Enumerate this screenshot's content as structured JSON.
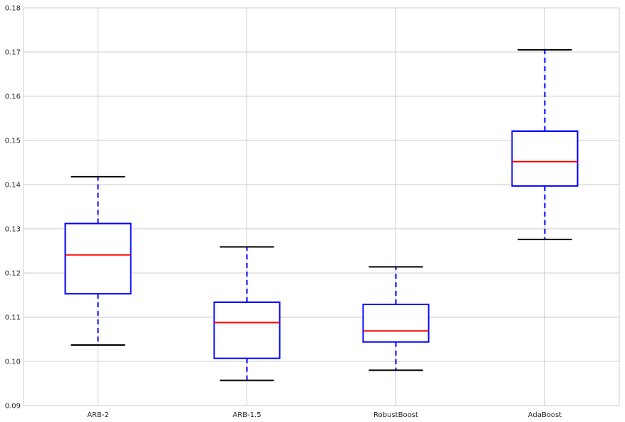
{
  "chart_data": {
    "type": "boxplot",
    "title": "",
    "xlabel": "",
    "ylabel": "",
    "ylim": [
      0.09,
      0.18
    ],
    "yticks": [
      0.09,
      0.1,
      0.11,
      0.12,
      0.13,
      0.14,
      0.15,
      0.16,
      0.17,
      0.18
    ],
    "ytick_labels": [
      "0.09",
      "0.10",
      "0.11",
      "0.12",
      "0.13",
      "0.14",
      "0.15",
      "0.16",
      "0.17",
      "0.18"
    ],
    "categories": [
      "ARB-2",
      "ARB-1.5",
      "RobustBoost",
      "AdaBoost"
    ],
    "boxes": [
      {
        "whisker_low": 0.1037,
        "q1": 0.1153,
        "median": 0.1241,
        "q3": 0.1312,
        "whisker_high": 0.1418
      },
      {
        "whisker_low": 0.0957,
        "q1": 0.1007,
        "median": 0.1088,
        "q3": 0.1134,
        "whisker_high": 0.1259
      },
      {
        "whisker_low": 0.098,
        "q1": 0.1044,
        "median": 0.1069,
        "q3": 0.1129,
        "whisker_high": 0.1214
      },
      {
        "whisker_low": 0.1276,
        "q1": 0.1397,
        "median": 0.1452,
        "q3": 0.1521,
        "whisker_high": 0.1705
      }
    ],
    "grid": true,
    "colors": {
      "box": "#0000ff",
      "whisker": "#0000ff",
      "median": "#ff0000",
      "cap": "#000000",
      "grid": "#cccccc",
      "frame": "#cccccc"
    }
  }
}
